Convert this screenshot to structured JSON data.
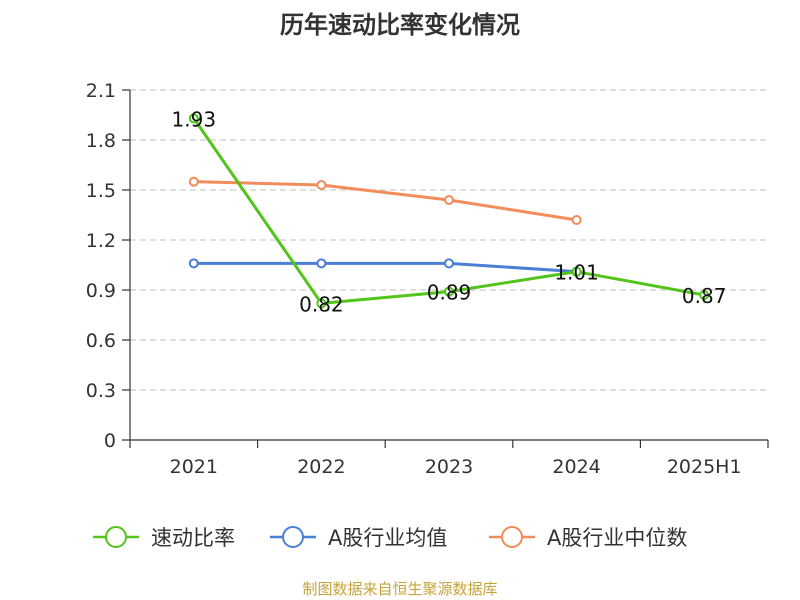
{
  "chart_data": {
    "type": "line",
    "title": "历年速动比率变化情况",
    "categories": [
      "2021",
      "2022",
      "2023",
      "2024",
      "2025H1"
    ],
    "yticks": [
      "0",
      "0.3",
      "0.6",
      "0.9",
      "1.2",
      "1.5",
      "1.8",
      "2.1"
    ],
    "ylim": [
      0,
      2.1
    ],
    "grid": true,
    "legend_position": "bottom",
    "series": [
      {
        "name": "速动比率",
        "color": "#52c41a",
        "values": [
          1.93,
          0.82,
          0.89,
          1.01,
          0.87
        ],
        "labels": [
          "1.93",
          "0.82",
          "0.89",
          "1.01",
          "0.87"
        ]
      },
      {
        "name": "A股行业均值",
        "color": "#4a7fd6",
        "values": [
          1.06,
          1.06,
          1.06,
          1.01,
          null
        ],
        "labels": []
      },
      {
        "name": "A股行业中位数",
        "color": "#f28c5a",
        "values": [
          1.55,
          1.53,
          1.44,
          1.32,
          null
        ],
        "labels": []
      }
    ]
  },
  "source": "制图数据来自恒生聚源数据库"
}
